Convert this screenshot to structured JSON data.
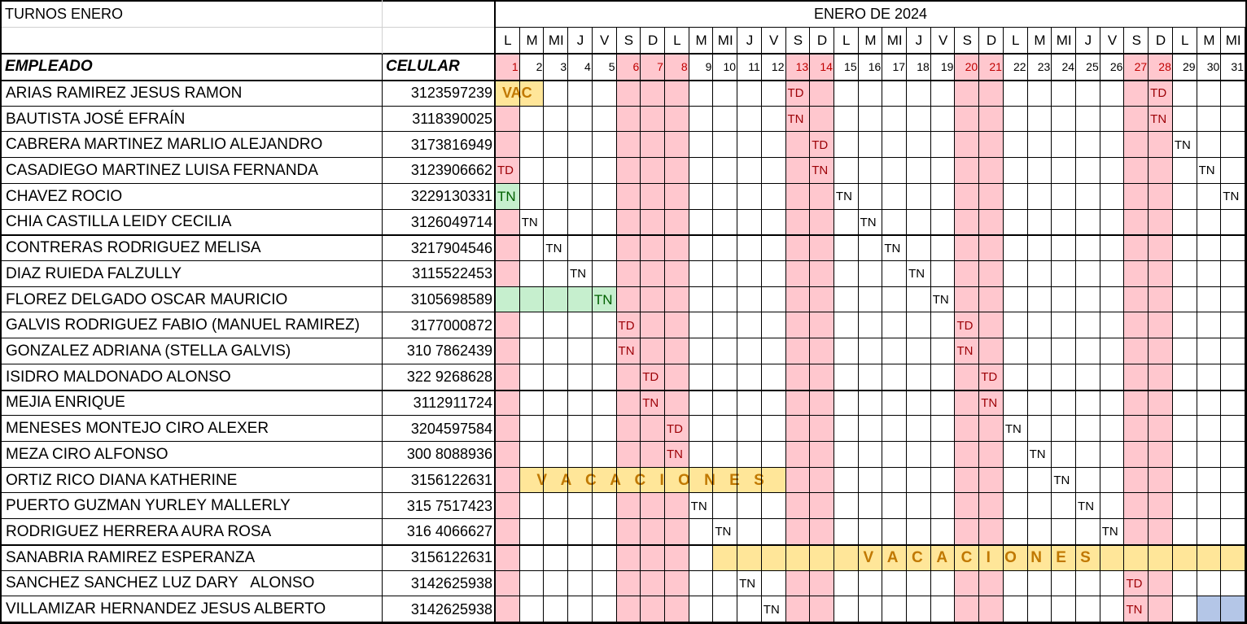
{
  "sheet": {
    "title": "TURNOS ENERO",
    "month_title": "ENERO DE 2024",
    "employee_header": "EMPLEADO",
    "phone_header": "CELULAR",
    "weekdays": [
      "L",
      "M",
      "MI",
      "J",
      "V",
      "S",
      "D",
      "L",
      "M",
      "MI",
      "J",
      "V",
      "S",
      "D",
      "L",
      "M",
      "MI",
      "J",
      "V",
      "S",
      "D",
      "L",
      "M",
      "MI",
      "J",
      "V",
      "S",
      "D",
      "L",
      "M",
      "MI"
    ],
    "day_numbers": [
      "1",
      "2",
      "3",
      "4",
      "5",
      "6",
      "7",
      "8",
      "9",
      "10",
      "11",
      "12",
      "13",
      "14",
      "15",
      "16",
      "17",
      "18",
      "19",
      "20",
      "21",
      "22",
      "23",
      "24",
      "25",
      "26",
      "27",
      "28",
      "29",
      "30",
      "31"
    ],
    "pink_days": [
      1,
      6,
      7,
      8,
      13,
      14,
      20,
      21,
      27,
      28
    ],
    "red_day_labels": [
      1,
      6,
      7,
      8,
      13,
      14,
      20,
      21,
      27,
      28
    ],
    "colors": {
      "pink": "#ffc7ce",
      "green": "#c6efce",
      "green_text": "#006100",
      "red_text": "#9c0006",
      "yellow": "#ffe699",
      "gold_text": "#c07800",
      "blue": "#b4c6e7"
    },
    "rows": [
      {
        "name": "ARIAS RAMIREZ JESUS RAMON",
        "phone": "3123597239",
        "shifts": [
          {
            "day": 1,
            "text": "VAC",
            "kind": "vacshort",
            "span": 2
          },
          {
            "day": 13,
            "text": "TD",
            "kind": "red"
          },
          {
            "day": 28,
            "text": "TD",
            "kind": "red"
          }
        ]
      },
      {
        "name": "BAUTISTA JOSÉ EFRAÍN",
        "phone": "3118390025",
        "shifts": [
          {
            "day": 13,
            "text": "TN",
            "kind": "red"
          },
          {
            "day": 28,
            "text": "TN",
            "kind": "red"
          }
        ]
      },
      {
        "name": "CABRERA MARTINEZ MARLIO ALEJANDRO",
        "phone": "3173816949",
        "shifts": [
          {
            "day": 14,
            "text": "TD",
            "kind": "red"
          },
          {
            "day": 29,
            "text": "TN",
            "kind": "plain"
          }
        ]
      },
      {
        "name": "CASADIEGO MARTINEZ LUISA FERNANDA",
        "phone": "3123906662",
        "shifts": [
          {
            "day": 1,
            "text": "TD",
            "kind": "red"
          },
          {
            "day": 14,
            "text": "TN",
            "kind": "red"
          },
          {
            "day": 30,
            "text": "TN",
            "kind": "plain"
          }
        ]
      },
      {
        "name": "CHAVEZ ROCIO",
        "phone": "3229130331",
        "shifts": [
          {
            "day": 1,
            "text": "TN",
            "kind": "green"
          },
          {
            "day": 15,
            "text": "TN",
            "kind": "plain"
          },
          {
            "day": 31,
            "text": "TN",
            "kind": "plain"
          }
        ]
      },
      {
        "name": "CHIA CASTILLA LEIDY CECILIA",
        "phone": "3126049714",
        "shifts": [
          {
            "day": 2,
            "text": "TN",
            "kind": "plain"
          },
          {
            "day": 16,
            "text": "TN",
            "kind": "plain"
          }
        ]
      },
      {
        "name": "CONTRERAS RODRIGUEZ MELISA",
        "phone": "3217904546",
        "shifts": [
          {
            "day": 3,
            "text": "TN",
            "kind": "plain"
          },
          {
            "day": 17,
            "text": "TN",
            "kind": "plain"
          }
        ]
      },
      {
        "name": "DIAZ RUIEDA FALZULLY",
        "phone": "3115522453",
        "shifts": [
          {
            "day": 4,
            "text": "TN",
            "kind": "plain"
          },
          {
            "day": 18,
            "text": "TN",
            "kind": "plain"
          }
        ]
      },
      {
        "name": "FLOREZ DELGADO OSCAR MAURICIO",
        "phone": "3105698589",
        "shifts": [
          {
            "day": 1,
            "text": "",
            "kind": "greenfill",
            "span": 4
          },
          {
            "day": 5,
            "text": "TN",
            "kind": "green"
          },
          {
            "day": 19,
            "text": "TN",
            "kind": "plain"
          }
        ]
      },
      {
        "name": "GALVIS RODRIGUEZ FABIO (MANUEL RAMIREZ)",
        "phone": "3177000872",
        "shifts": [
          {
            "day": 6,
            "text": "TD",
            "kind": "red"
          },
          {
            "day": 20,
            "text": "TD",
            "kind": "red"
          }
        ]
      },
      {
        "name": "GONZALEZ ADRIANA (STELLA GALVIS)",
        "phone": "310 7862439",
        "shifts": [
          {
            "day": 6,
            "text": "TN",
            "kind": "red"
          },
          {
            "day": 20,
            "text": "TN",
            "kind": "red"
          }
        ]
      },
      {
        "name": "ISIDRO MALDONADO ALONSO",
        "phone": "322 9268628",
        "shifts": [
          {
            "day": 7,
            "text": "TD",
            "kind": "red"
          },
          {
            "day": 21,
            "text": "TD",
            "kind": "red"
          }
        ]
      },
      {
        "name": "MEJIA ENRIQUE",
        "phone": "3112911724",
        "shifts": [
          {
            "day": 7,
            "text": "TN",
            "kind": "red"
          },
          {
            "day": 21,
            "text": "TN",
            "kind": "red"
          }
        ]
      },
      {
        "name": "MENESES MONTEJO CIRO ALEXER",
        "phone": "3204597584",
        "shifts": [
          {
            "day": 8,
            "text": "TD",
            "kind": "red"
          },
          {
            "day": 22,
            "text": "TN",
            "kind": "plain"
          }
        ]
      },
      {
        "name": "MEZA CIRO ALFONSO",
        "phone": "300 8088936",
        "shifts": [
          {
            "day": 8,
            "text": "TN",
            "kind": "red"
          },
          {
            "day": 23,
            "text": "TN",
            "kind": "plain"
          }
        ]
      },
      {
        "name": "ORTIZ RICO DIANA KATHERINE",
        "phone": "3156122631",
        "shifts": [
          {
            "day": 2,
            "text": "V A C A C I O N E S",
            "kind": "vac",
            "span": 11
          },
          {
            "day": 24,
            "text": "TN",
            "kind": "plain"
          }
        ]
      },
      {
        "name": "PUERTO GUZMAN YURLEY MALLERLY",
        "phone": "315 7517423",
        "shifts": [
          {
            "day": 9,
            "text": "TN",
            "kind": "plain"
          },
          {
            "day": 25,
            "text": "TN",
            "kind": "plain"
          }
        ]
      },
      {
        "name": "RODRIGUEZ HERRERA AURA ROSA",
        "phone": "316 4066627",
        "shifts": [
          {
            "day": 10,
            "text": "TN",
            "kind": "plain"
          },
          {
            "day": 26,
            "text": "TN",
            "kind": "plain"
          }
        ]
      },
      {
        "name": "SANABRIA RAMIREZ ESPERANZA",
        "phone": "3156122631",
        "shifts": [
          {
            "day": 10,
            "text": "V A C A C I O N E S",
            "kind": "vac",
            "span": 22
          }
        ]
      },
      {
        "name": "SANCHEZ SANCHEZ LUZ DARY   ALONSO",
        "phone": "3142625938",
        "shifts": [
          {
            "day": 11,
            "text": "TN",
            "kind": "plain"
          },
          {
            "day": 27,
            "text": "TD",
            "kind": "red"
          }
        ]
      },
      {
        "name": "VILLAMIZAR HERNANDEZ JESUS ALBERTO",
        "phone": "3142625938",
        "shifts": [
          {
            "day": 12,
            "text": "TN",
            "kind": "plain"
          },
          {
            "day": 27,
            "text": "TN",
            "kind": "red"
          },
          {
            "day": 30,
            "text": "",
            "kind": "bluefill",
            "span": 2
          }
        ]
      }
    ]
  }
}
